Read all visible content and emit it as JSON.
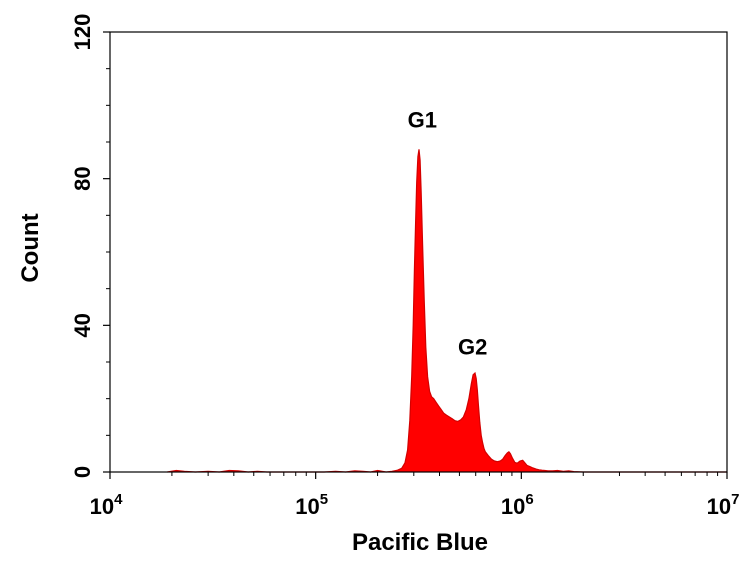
{
  "chart_data": {
    "type": "area",
    "xlabel": "Pacific Blue",
    "ylabel": "Count",
    "x_scale": "log",
    "xlim": [
      10000,
      10000000
    ],
    "ylim": [
      0,
      120
    ],
    "x_ticks": [
      {
        "value": 10000,
        "base": "10",
        "exp": "4"
      },
      {
        "value": 100000,
        "base": "10",
        "exp": "5"
      },
      {
        "value": 1000000,
        "base": "10",
        "exp": "6"
      },
      {
        "value": 10000000,
        "base": "10",
        "exp": "7"
      }
    ],
    "y_ticks": [
      {
        "value": 0,
        "label": "0"
      },
      {
        "value": 40,
        "label": "40"
      },
      {
        "value": 80,
        "label": "80"
      },
      {
        "value": 120,
        "label": "120"
      }
    ],
    "grid": false,
    "fill_color": "#ff0000",
    "stroke_color": "#d40000",
    "series": [
      {
        "x": [
          19000,
          21000,
          23000,
          26000,
          30000,
          34000,
          38000,
          42000,
          47000,
          52000,
          58000,
          70000,
          90000,
          110000,
          125000,
          140000,
          155000,
          170000,
          185000,
          200000,
          220000,
          235000,
          250000,
          262000,
          272000,
          280000,
          287000,
          293000,
          298000,
          302000,
          306000,
          310000,
          314000,
          318000,
          322000,
          326000,
          331000,
          337000,
          343000,
          350000,
          358000,
          366000,
          375000,
          385000,
          396000,
          408000,
          420000,
          433000,
          447000,
          461000,
          476000,
          491000,
          507000,
          523000,
          540000,
          556000,
          571000,
          583000,
          595000,
          603000,
          611000,
          619000,
          628000,
          638000,
          648000,
          658000,
          668000,
          690000,
          715000,
          740000,
          765000,
          790000,
          812000,
          835000,
          855000,
          870000,
          885000,
          905000,
          930000,
          955000,
          985000,
          1015000,
          1040000,
          1065000,
          1100000,
          1140000,
          1180000,
          1220000,
          1260000,
          1300000,
          1350000,
          1420000,
          1500000,
          1600000,
          1700000,
          1800000,
          2000000,
          3000000,
          5000000,
          10000000
        ],
        "y": [
          0,
          0.4,
          0.2,
          0,
          0.2,
          0,
          0.4,
          0.3,
          0,
          0.2,
          0,
          0,
          0,
          0,
          0.2,
          0,
          0.3,
          0.2,
          0,
          0.4,
          0,
          0.2,
          0.5,
          1,
          2.5,
          6,
          14,
          26,
          40,
          55,
          68,
          79,
          86,
          88,
          85,
          76,
          62,
          47,
          34,
          26,
          22,
          20.5,
          20,
          19,
          18,
          17,
          16,
          15.5,
          15,
          14.5,
          14,
          13.8,
          14.2,
          15,
          17,
          20,
          24,
          26.5,
          27,
          25.5,
          22.5,
          18,
          13.5,
          10,
          8,
          6.5,
          5.5,
          4.5,
          3.5,
          3,
          2.8,
          3,
          3.5,
          4.5,
          5.2,
          5.5,
          5,
          3.8,
          2.6,
          2.4,
          3,
          3.2,
          2.5,
          1.8,
          1.5,
          1.1,
          0.8,
          0.6,
          0.5,
          0.4,
          0.3,
          0.3,
          0.4,
          0.2,
          0.3,
          0.1,
          0,
          0,
          0,
          0
        ]
      }
    ],
    "annotations": [
      {
        "text": "G1",
        "x": 330000,
        "y": 94
      },
      {
        "text": "G2",
        "x": 580000,
        "y": 32
      }
    ]
  }
}
